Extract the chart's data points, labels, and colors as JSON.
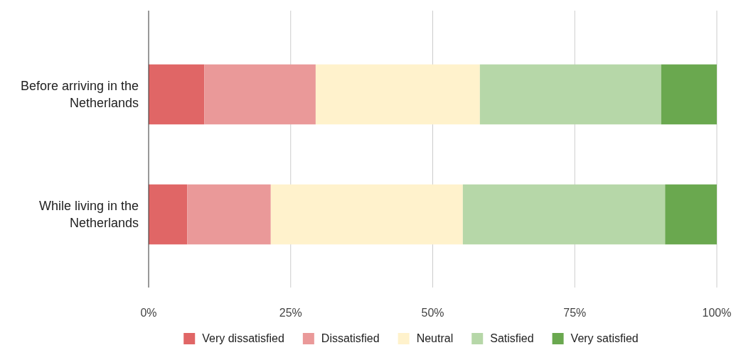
{
  "chart_data": {
    "type": "bar",
    "orientation": "horizontal",
    "stacked": true,
    "categories": [
      "Before arriving in the Netherlands",
      "While living in the Netherlands"
    ],
    "series": [
      {
        "name": "Very dissatisfied",
        "color": "#e06666",
        "values": [
          9.8,
          6.8
        ]
      },
      {
        "name": "Dissatisfied",
        "color": "#ea9999",
        "values": [
          19.6,
          14.7
        ]
      },
      {
        "name": "Neutral",
        "color": "#fff2cc",
        "values": [
          28.9,
          33.8
        ]
      },
      {
        "name": "Satisfied",
        "color": "#b6d7a8",
        "values": [
          31.9,
          35.6
        ]
      },
      {
        "name": "Very satisfied",
        "color": "#6aa84f",
        "values": [
          9.8,
          9.1
        ]
      }
    ],
    "xlim": [
      0,
      100
    ],
    "xticks": [
      {
        "value": 0,
        "label": "0%"
      },
      {
        "value": 25,
        "label": "25%"
      },
      {
        "value": 50,
        "label": "50%"
      },
      {
        "value": 75,
        "label": "75%"
      },
      {
        "value": 100,
        "label": "100%"
      }
    ],
    "grid": "x",
    "legend": "bottom"
  }
}
